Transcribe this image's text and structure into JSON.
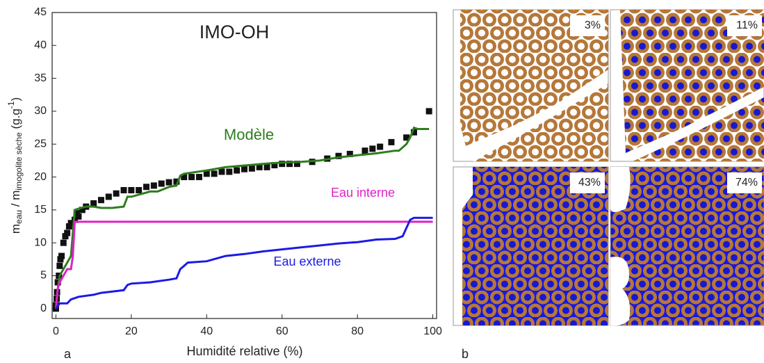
{
  "chart_data": {
    "type": "line",
    "title": "IMO-OH",
    "x_label": "Humidité relative (%)",
    "y_label": [
      "m",
      "eau",
      " / m",
      "imogolite sèche",
      " (g.g",
      "-1",
      ")"
    ],
    "xlim": [
      -1,
      101
    ],
    "ylim": [
      -1.5,
      45
    ],
    "xticks": [
      0,
      20,
      40,
      60,
      80,
      100
    ],
    "yticks": [
      0,
      5,
      10,
      15,
      20,
      25,
      30,
      35,
      40,
      45
    ],
    "series": [
      {
        "type": "scatter",
        "color": "#111111",
        "x": [
          0,
          0,
          0.2,
          0.3,
          0.5,
          0.8,
          1,
          1.2,
          1.5,
          2,
          2.5,
          3,
          3.5,
          4,
          5,
          5.5,
          6,
          7,
          8,
          10,
          12,
          14,
          16,
          18,
          20,
          22,
          24,
          26,
          28,
          30,
          32,
          34,
          36,
          38,
          40,
          42,
          44,
          46,
          48,
          50,
          52,
          54,
          56,
          58,
          60,
          62,
          64,
          68,
          72,
          75,
          78,
          82,
          84,
          86,
          89,
          93,
          95,
          99
        ],
        "values": [
          0,
          0.5,
          1.5,
          2.5,
          4,
          5,
          6.5,
          7.5,
          8,
          10,
          11,
          11.5,
          12.5,
          13,
          13.5,
          14.5,
          14,
          15,
          15.5,
          16,
          16.5,
          17,
          17.5,
          18,
          18,
          18,
          18.5,
          18.7,
          19,
          19.2,
          19.3,
          20,
          20,
          20,
          20.5,
          20.5,
          20.8,
          20.8,
          21,
          21.2,
          21.3,
          21.5,
          21.5,
          21.8,
          22,
          22,
          22,
          22.3,
          22.8,
          23.2,
          23.5,
          24,
          24.3,
          24.6,
          25.3,
          26,
          26.8,
          30
        ]
      },
      {
        "name": "Modèle",
        "color": "#2e7d1e",
        "x": [
          0,
          0.5,
          1,
          2,
          3,
          4,
          5,
          6,
          8,
          10,
          12,
          15,
          18,
          19,
          20,
          25,
          27,
          30,
          32,
          33,
          34,
          40,
          45,
          55,
          60,
          65,
          70,
          75,
          80,
          85,
          90,
          91,
          93,
          94,
          95,
          96,
          99
        ],
        "values": [
          0,
          3,
          5,
          6,
          7,
          8,
          15,
          15.2,
          15.5,
          15.5,
          15.3,
          15.3,
          15.5,
          17,
          17,
          17.8,
          17.8,
          18.5,
          18.7,
          20.2,
          20.5,
          21,
          21.5,
          22,
          22.2,
          22.3,
          22.5,
          23,
          23.3,
          23.6,
          24,
          24,
          25,
          26,
          27.5,
          27.3,
          27.3
        ]
      },
      {
        "name": "Eau interne",
        "color": "#e020c8",
        "x": [
          0,
          0.5,
          1,
          2,
          3,
          4,
          4.5,
          5,
          6,
          100
        ],
        "values": [
          0,
          3,
          4,
          5,
          6,
          6,
          8,
          13.2,
          13.2,
          13.2
        ]
      },
      {
        "name": "Eau externe",
        "color": "#1a1ae6",
        "x": [
          0,
          1,
          3,
          4,
          6,
          10,
          12,
          15,
          18,
          19,
          20,
          25,
          30,
          32,
          33,
          34,
          35,
          40,
          45,
          50,
          55,
          60,
          65,
          70,
          75,
          80,
          85,
          90,
          92,
          94,
          95,
          100
        ],
        "values": [
          0,
          0.8,
          0.8,
          1.4,
          1.8,
          2.1,
          2.4,
          2.6,
          2.8,
          3.6,
          3.8,
          4,
          4.4,
          4.6,
          6,
          6.5,
          7,
          7.2,
          8,
          8.3,
          8.7,
          9,
          9.3,
          9.6,
          9.9,
          10.1,
          10.5,
          10.6,
          11,
          13.5,
          13.8,
          13.8
        ]
      }
    ],
    "panel_label": "a"
  },
  "panels": {
    "label": "b",
    "items": [
      "3%",
      "11%",
      "43%",
      "74%"
    ]
  }
}
